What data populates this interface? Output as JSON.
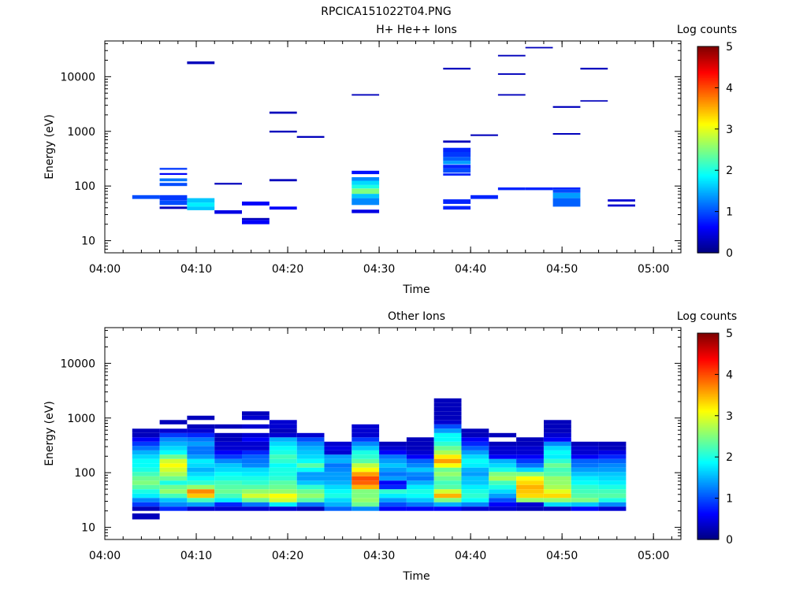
{
  "figure": {
    "filename": "RPCICA151022T04.PNG"
  },
  "colorbar_colors": [
    "#00007f",
    "#0000ff",
    "#007fff",
    "#00ffff",
    "#7fff7f",
    "#ffff00",
    "#ff7f00",
    "#ff0000",
    "#7f0000"
  ],
  "chart_data": [
    {
      "type": "heatmap",
      "title": "H+ He++ Ions",
      "xlabel": "Time",
      "ylabel": "Energy (eV)",
      "yscale": "log",
      "xlim": [
        "04:00",
        "05:03"
      ],
      "ylim": [
        6,
        45000
      ],
      "xticks": [
        "04:00",
        "04:10",
        "04:20",
        "04:30",
        "04:40",
        "04:50",
        "05:00"
      ],
      "yticks": [
        "10",
        "100",
        "1000",
        "10000"
      ],
      "colorbar": {
        "label": "Log counts",
        "range": [
          0,
          5
        ],
        "ticks": [
          "0",
          "1",
          "2",
          "3",
          "4",
          "5"
        ]
      },
      "cells": [
        [
          "04:03",
          "04:06",
          58,
          68,
          1.0
        ],
        [
          "04:06",
          "04:09",
          38,
          42,
          0.3
        ],
        [
          "04:06",
          "04:09",
          45,
          54,
          1.0
        ],
        [
          "04:06",
          "04:09",
          54,
          68,
          0.9
        ],
        [
          "04:06",
          "04:09",
          100,
          114,
          1.0
        ],
        [
          "04:06",
          "04:09",
          122,
          138,
          1.2
        ],
        [
          "04:06",
          "04:09",
          160,
          172,
          0.6
        ],
        [
          "04:06",
          "04:09",
          198,
          214,
          0.9
        ],
        [
          "04:09",
          "04:12",
          36,
          42,
          1.6
        ],
        [
          "04:09",
          "04:12",
          42,
          50,
          1.8
        ],
        [
          "04:09",
          "04:12",
          50,
          60,
          1.6
        ],
        [
          "04:09",
          "04:12",
          17000,
          19000,
          0.3
        ],
        [
          "04:12",
          "04:15",
          31,
          36,
          0.5
        ],
        [
          "04:12",
          "04:15",
          106,
          114,
          0.3
        ],
        [
          "04:15",
          "04:18",
          20,
          24,
          0.6
        ],
        [
          "04:15",
          "04:18",
          24,
          26,
          0.3
        ],
        [
          "04:15",
          "04:18",
          44,
          52,
          0.6
        ],
        [
          "04:18",
          "04:21",
          37,
          42,
          0.6
        ],
        [
          "04:18",
          "04:21",
          122,
          134,
          0.3
        ],
        [
          "04:18",
          "04:21",
          950,
          1030,
          0.3
        ],
        [
          "04:18",
          "04:21",
          2100,
          2300,
          0.3
        ],
        [
          "04:21",
          "04:24",
          760,
          820,
          0.3
        ],
        [
          "04:27",
          "04:30",
          32,
          37,
          0.5
        ],
        [
          "04:27",
          "04:30",
          45,
          60,
          1.3
        ],
        [
          "04:27",
          "04:30",
          60,
          72,
          1.6
        ],
        [
          "04:27",
          "04:30",
          72,
          90,
          2.5
        ],
        [
          "04:27",
          "04:30",
          90,
          105,
          2.0
        ],
        [
          "04:27",
          "04:30",
          105,
          125,
          1.7
        ],
        [
          "04:27",
          "04:30",
          125,
          145,
          1.3
        ],
        [
          "04:27",
          "04:30",
          165,
          190,
          0.7
        ],
        [
          "04:27",
          "04:30",
          4500,
          4800,
          0.3
        ],
        [
          "04:37",
          "04:40",
          37,
          43,
          0.8
        ],
        [
          "04:37",
          "04:40",
          47,
          57,
          0.8
        ],
        [
          "04:37",
          "04:40",
          155,
          170,
          0.8
        ],
        [
          "04:37",
          "04:40",
          175,
          210,
          1.0
        ],
        [
          "04:37",
          "04:40",
          210,
          245,
          0.8
        ],
        [
          "04:37",
          "04:40",
          250,
          290,
          1.4
        ],
        [
          "04:37",
          "04:40",
          290,
          340,
          1.1
        ],
        [
          "04:37",
          "04:40",
          340,
          420,
          0.9
        ],
        [
          "04:37",
          "04:40",
          420,
          500,
          0.8
        ],
        [
          "04:37",
          "04:40",
          620,
          680,
          0.3
        ],
        [
          "04:37",
          "04:40",
          13500,
          14500,
          0.3
        ],
        [
          "04:40",
          "04:43",
          58,
          68,
          0.8
        ],
        [
          "04:40",
          "04:43",
          820,
          880,
          0.3
        ],
        [
          "04:43",
          "04:46",
          84,
          94,
          0.8
        ],
        [
          "04:43",
          "04:46",
          4500,
          4800,
          0.3
        ],
        [
          "04:43",
          "04:46",
          10800,
          11500,
          0.3
        ],
        [
          "04:43",
          "04:46",
          23500,
          25000,
          0.3
        ],
        [
          "04:46",
          "04:49",
          84,
          94,
          0.8
        ],
        [
          "04:46",
          "04:49",
          33000,
          35000,
          0.3
        ],
        [
          "04:49",
          "04:52",
          42,
          60,
          1.1
        ],
        [
          "04:49",
          "04:52",
          60,
          75,
          1.4
        ],
        [
          "04:49",
          "04:52",
          75,
          86,
          1.0
        ],
        [
          "04:49",
          "04:52",
          86,
          94,
          0.8
        ],
        [
          "04:49",
          "04:52",
          870,
          930,
          0.3
        ],
        [
          "04:49",
          "04:52",
          2700,
          2900,
          0.3
        ],
        [
          "04:52",
          "04:55",
          3500,
          3700,
          0.3
        ],
        [
          "04:52",
          "04:55",
          13500,
          14500,
          0.3
        ],
        [
          "04:55",
          "04:58",
          42,
          46,
          0.4
        ],
        [
          "04:55",
          "04:58",
          52,
          57,
          0.4
        ]
      ]
    },
    {
      "type": "heatmap",
      "title": "Other Ions",
      "xlabel": "Time",
      "ylabel": "Energy (eV)",
      "yscale": "log",
      "xlim": [
        "04:00",
        "05:03"
      ],
      "ylim": [
        6,
        45000
      ],
      "xticks": [
        "04:00",
        "04:10",
        "04:20",
        "04:30",
        "04:40",
        "04:50",
        "05:00"
      ],
      "yticks": [
        "10",
        "100",
        "1000",
        "10000"
      ],
      "colorbar": {
        "label": "Log counts",
        "range": [
          0,
          5
        ],
        "ticks": [
          "0",
          "1",
          "2",
          "3",
          "4",
          "5"
        ]
      },
      "columns": [
        {
          "start": "04:03",
          "end": "04:06",
          "values": [
            0.3,
            0.9,
            1.3,
            1.8,
            2.0,
            2.3,
            2.5,
            2.4,
            2.2,
            2.0,
            1.9,
            1.9,
            1.7,
            1.5,
            1.2,
            0.9,
            0.6,
            0.3,
            0.3,
            null,
            null,
            null,
            null,
            null,
            null,
            null
          ],
          "extras": [
            [
              14,
              18,
              0.3
            ]
          ]
        },
        {
          "start": "04:06",
          "end": "04:09",
          "values": [
            0.8,
            1.3,
            1.6,
            2.2,
            2.6,
            2.4,
            2.0,
            2.4,
            2.7,
            2.9,
            3.1,
            2.9,
            2.4,
            1.9,
            1.7,
            1.5,
            1.3,
            0.9,
            0.4,
            null,
            0.3,
            null,
            null,
            null,
            null,
            null
          ],
          "extras": []
        },
        {
          "start": "04:09",
          "end": "04:12",
          "values": [
            0.4,
            1.4,
            2.2,
            3.4,
            3.7,
            2.6,
            2.1,
            1.9,
            1.7,
            1.5,
            1.7,
            1.8,
            1.4,
            1.2,
            1.2,
            1.4,
            1.2,
            0.8,
            0.4,
            0.3,
            null,
            0.3,
            null,
            null,
            null,
            null
          ],
          "extras": []
        },
        {
          "start": "04:12",
          "end": "04:15",
          "values": [
            0.4,
            0.8,
            1.8,
            2.2,
            2.4,
            2.3,
            2.2,
            2.0,
            1.9,
            1.7,
            1.6,
            1.3,
            0.9,
            0.6,
            0.4,
            0.4,
            0.3,
            0.3,
            null,
            0.3,
            null,
            null,
            null,
            null,
            null,
            null
          ],
          "extras": []
        },
        {
          "start": "04:15",
          "end": "04:18",
          "values": [
            0.4,
            1.2,
            2.4,
            2.9,
            2.6,
            2.3,
            2.1,
            2.0,
            1.8,
            1.7,
            1.3,
            1.2,
            1.1,
            0.8,
            0.4,
            0.4,
            0.6,
            0.4,
            null,
            0.4,
            null,
            0.4,
            0.3,
            null,
            null,
            null
          ],
          "extras": []
        },
        {
          "start": "04:18",
          "end": "04:21",
          "values": [
            0.4,
            1.8,
            2.9,
            3.1,
            2.6,
            2.4,
            2.3,
            2.1,
            2.0,
            2.0,
            1.9,
            2.1,
            2.2,
            2.0,
            1.9,
            1.7,
            1.5,
            0.4,
            0.3,
            0.4,
            0.4,
            null,
            null,
            null,
            null,
            null
          ],
          "extras": []
        },
        {
          "start": "04:21",
          "end": "04:24",
          "values": [
            0.3,
            1.2,
            2.3,
            2.6,
            2.4,
            2.1,
            1.6,
            1.4,
            1.4,
            1.9,
            2.3,
            1.9,
            1.7,
            1.6,
            1.5,
            1.3,
            1.0,
            0.4,
            null,
            null,
            null,
            null,
            null,
            null,
            null,
            null
          ],
          "extras": []
        },
        {
          "start": "04:24",
          "end": "04:27",
          "values": [
            1.1,
            1.5,
            1.7,
            2.0,
            1.9,
            1.7,
            1.5,
            1.4,
            1.4,
            1.3,
            1.2,
            1.5,
            1.4,
            0.4,
            0.5,
            0.4,
            null,
            null,
            null,
            null,
            null,
            null,
            null,
            null,
            null,
            null
          ],
          "extras": []
        },
        {
          "start": "04:27",
          "end": "04:30",
          "values": [
            1.3,
            2.4,
            2.6,
            2.5,
            2.5,
            3.5,
            3.9,
            4.0,
            3.6,
            3.1,
            2.8,
            2.3,
            2.1,
            2.0,
            1.6,
            1.3,
            0.9,
            0.4,
            0.4,
            0.4,
            null,
            null,
            null,
            null,
            null,
            null
          ],
          "extras": []
        },
        {
          "start": "04:30",
          "end": "04:33",
          "values": [
            0.6,
            1.0,
            1.4,
            1.8,
            2.1,
            0.8,
            0.6,
            1.4,
            1.2,
            1.4,
            1.6,
            1.4,
            1.2,
            0.6,
            0.4,
            0.3,
            null,
            null,
            null,
            null,
            null,
            null,
            null,
            null,
            null,
            null
          ],
          "extras": []
        },
        {
          "start": "04:33",
          "end": "04:36",
          "values": [
            0.6,
            1.2,
            1.6,
            1.9,
            2.0,
            1.8,
            1.5,
            1.2,
            1.3,
            1.6,
            1.3,
            1.1,
            0.6,
            0.4,
            0.3,
            0.3,
            0.3,
            null,
            null,
            null,
            null,
            null,
            null,
            null,
            null,
            null
          ],
          "extras": []
        },
        {
          "start": "04:36",
          "end": "04:39",
          "values": [
            0.6,
            1.5,
            2.5,
            3.5,
            2.9,
            2.3,
            2.2,
            2.4,
            2.6,
            2.4,
            3.1,
            3.6,
            3.2,
            2.7,
            2.4,
            2.1,
            1.9,
            1.9,
            1.4,
            1.0,
            0.4,
            0.3,
            0.3,
            0.3,
            0.3,
            0.3
          ],
          "extras": []
        },
        {
          "start": "04:39",
          "end": "04:42",
          "values": [
            0.4,
            1.3,
            1.9,
            2.1,
            2.0,
            1.8,
            1.6,
            1.6,
            1.4,
            1.5,
            1.8,
            1.9,
            1.7,
            1.4,
            1.1,
            0.8,
            0.6,
            0.3,
            0.3,
            null,
            null,
            null,
            null,
            null,
            null,
            null
          ],
          "extras": []
        },
        {
          "start": "04:42",
          "end": "04:45",
          "values": [
            0.4,
            0.6,
            1.0,
            1.4,
            1.7,
            2.0,
            2.2,
            2.7,
            2.5,
            2.0,
            1.7,
            1.5,
            0.6,
            0.4,
            0.4,
            0.3,
            null,
            0.3,
            null,
            null,
            null,
            null,
            null,
            null,
            null,
            null
          ],
          "extras": []
        },
        {
          "start": "04:45",
          "end": "04:48",
          "values": [
            0.3,
            0.4,
            2.6,
            3.3,
            3.4,
            3.5,
            3.3,
            3.1,
            2.5,
            1.7,
            1.2,
            0.9,
            0.6,
            0.4,
            0.4,
            0.3,
            0.3,
            null,
            null,
            null,
            null,
            null,
            null,
            null,
            null,
            null
          ],
          "extras": []
        },
        {
          "start": "04:48",
          "end": "04:51",
          "values": [
            0.3,
            1.7,
            2.6,
            3.3,
            3.0,
            2.7,
            2.6,
            2.6,
            2.3,
            2.2,
            2.4,
            2.1,
            1.8,
            1.9,
            1.7,
            1.3,
            0.6,
            0.4,
            0.3,
            0.3,
            0.3,
            null,
            null,
            null,
            null,
            null
          ],
          "extras": []
        },
        {
          "start": "04:51",
          "end": "04:54",
          "values": [
            0.6,
            1.6,
            2.5,
            2.3,
            2.2,
            2.1,
            1.9,
            1.8,
            1.6,
            1.4,
            1.2,
            1.1,
            0.6,
            0.4,
            0.4,
            0.3,
            null,
            null,
            null,
            null,
            null,
            null,
            null,
            null,
            null,
            null
          ],
          "extras": []
        },
        {
          "start": "04:54",
          "end": "04:57",
          "values": [
            0.4,
            1.3,
            2.0,
            2.3,
            2.2,
            2.0,
            1.8,
            1.7,
            1.6,
            1.4,
            1.3,
            1.1,
            0.8,
            0.5,
            0.3,
            0.3,
            null,
            null,
            null,
            null,
            null,
            null,
            null,
            null,
            null,
            null
          ],
          "extras": []
        }
      ],
      "bin_low_ev": 20,
      "bin_ratio": 1.2
    }
  ]
}
